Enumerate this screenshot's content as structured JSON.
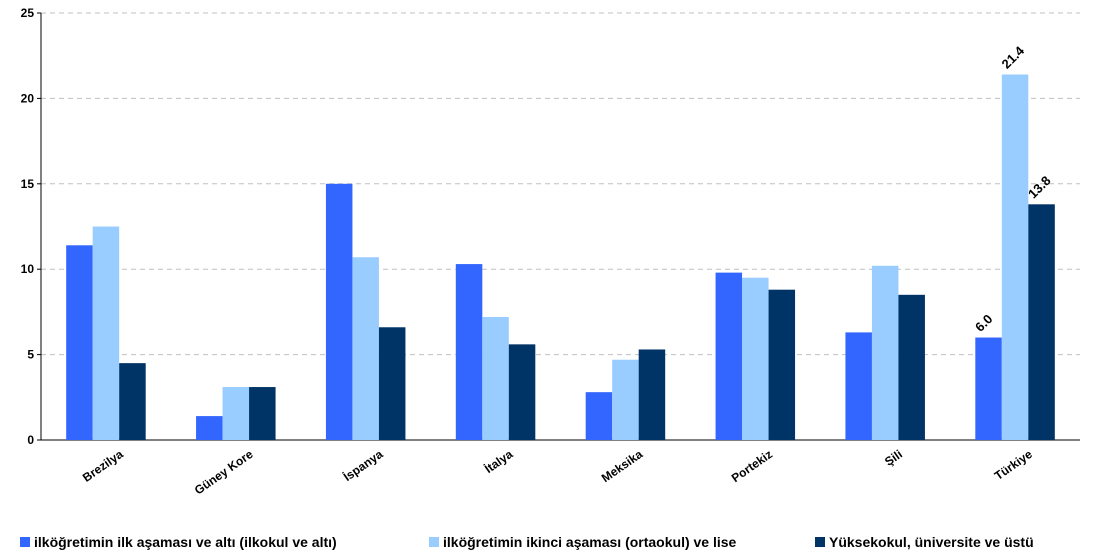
{
  "chart_data": {
    "type": "bar",
    "categories": [
      "Brezilya",
      "Güney Kore",
      "İspanya",
      "İtalya",
      "Meksika",
      "Portekiz",
      "Şili",
      "Türkiye"
    ],
    "series": [
      {
        "name": "ilköğretimin ilk aşaması ve altı (ilkokul ve altı)",
        "color": "#3366ff",
        "values": [
          11.4,
          1.4,
          15.0,
          10.3,
          2.8,
          9.8,
          6.3,
          6.0
        ]
      },
      {
        "name": "ilköğretimin ikinci aşaması (ortaokul) ve lise",
        "color": "#99ccff",
        "values": [
          12.5,
          3.1,
          10.7,
          7.2,
          4.7,
          9.5,
          10.2,
          21.4
        ]
      },
      {
        "name": "Yüksekokul, üniversite ve üstü",
        "color": "#003366",
        "values": [
          4.5,
          3.1,
          6.6,
          5.6,
          5.3,
          8.8,
          8.5,
          13.8
        ]
      }
    ],
    "data_labels": [
      {
        "category": "Türkiye",
        "series": 0,
        "text": "6.0"
      },
      {
        "category": "Türkiye",
        "series": 1,
        "text": "21.4"
      },
      {
        "category": "Türkiye",
        "series": 2,
        "text": "13.8"
      }
    ],
    "y_ticks": [
      "0",
      "5",
      "10",
      "15",
      "20",
      "25"
    ],
    "ylim": [
      0,
      25
    ],
    "grid": true,
    "legend_position": "bottom"
  }
}
